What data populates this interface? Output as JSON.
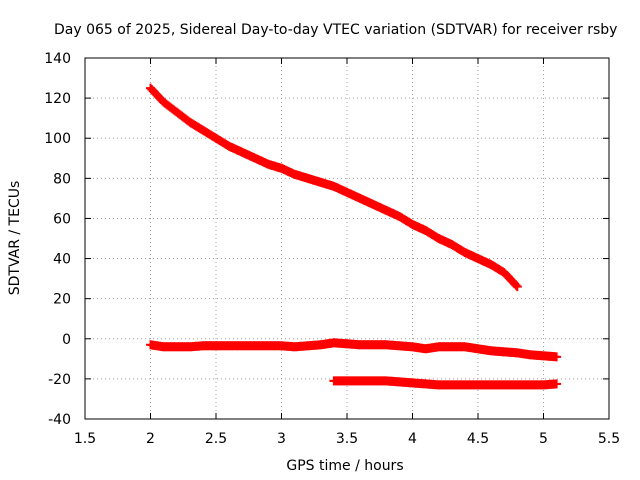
{
  "chart_data": {
    "type": "scatter",
    "title": "Day 065 of 2025, Sidereal Day-to-day VTEC variation (SDTVAR) for receiver rsby",
    "xlabel": "GPS time / hours",
    "ylabel": "SDTVAR / TECUs",
    "xlim": [
      1.5,
      5.5
    ],
    "ylim": [
      -40,
      140
    ],
    "xticks": [
      1.5,
      2,
      2.5,
      3,
      3.5,
      4,
      4.5,
      5,
      5.5
    ],
    "yticks": [
      -40,
      -20,
      0,
      20,
      40,
      60,
      80,
      100,
      120,
      140
    ],
    "xtick_labels": [
      "1.5",
      "2",
      "2.5",
      "3",
      "3.5",
      "4",
      "4.5",
      "5",
      "5.5"
    ],
    "ytick_labels": [
      "-40",
      "-20",
      "0",
      "20",
      "40",
      "60",
      "80",
      "100",
      "120",
      "140"
    ],
    "grid": true,
    "marker": "+",
    "color": "#ff0000",
    "series": [
      {
        "name": "track-upper",
        "x": [
          2.0,
          2.1,
          2.2,
          2.3,
          2.4,
          2.5,
          2.6,
          2.7,
          2.8,
          2.9,
          3.0,
          3.1,
          3.2,
          3.3,
          3.4,
          3.5,
          3.6,
          3.7,
          3.8,
          3.9,
          4.0,
          4.1,
          4.2,
          4.3,
          4.4,
          4.5,
          4.6,
          4.7,
          4.8
        ],
        "y": [
          125,
          118,
          113,
          108,
          104,
          100,
          96,
          93,
          90,
          87,
          85,
          82,
          80,
          78,
          76,
          73,
          70,
          67,
          64,
          61,
          57,
          54,
          50,
          47,
          43,
          40,
          37,
          33,
          26
        ]
      },
      {
        "name": "track-middle",
        "x": [
          2.0,
          2.1,
          2.2,
          2.3,
          2.4,
          2.5,
          2.6,
          2.7,
          2.8,
          2.9,
          3.0,
          3.1,
          3.2,
          3.3,
          3.4,
          3.5,
          3.6,
          3.7,
          3.8,
          3.9,
          4.0,
          4.1,
          4.2,
          4.3,
          4.4,
          4.5,
          4.6,
          4.7,
          4.8,
          4.9,
          5.0,
          5.1
        ],
        "y": [
          -3,
          -4,
          -4,
          -4,
          -3.5,
          -3.5,
          -3.5,
          -3.5,
          -3.5,
          -3.5,
          -3.5,
          -4,
          -3.5,
          -3,
          -2,
          -2.5,
          -3,
          -3,
          -3,
          -3.5,
          -4,
          -5,
          -4,
          -4,
          -4,
          -5,
          -6,
          -6.5,
          -7,
          -8,
          -8.5,
          -9
        ]
      },
      {
        "name": "track-lower",
        "x": [
          3.4,
          3.5,
          3.6,
          3.7,
          3.8,
          3.9,
          4.0,
          4.1,
          4.2,
          4.3,
          4.4,
          4.5,
          4.6,
          4.7,
          4.8,
          4.9,
          5.0,
          5.1
        ],
        "y": [
          -21,
          -21,
          -21,
          -21,
          -21,
          -21.5,
          -22,
          -22.5,
          -23,
          -23,
          -23,
          -23,
          -23,
          -23,
          -23,
          -23,
          -23,
          -22.5
        ]
      }
    ]
  }
}
